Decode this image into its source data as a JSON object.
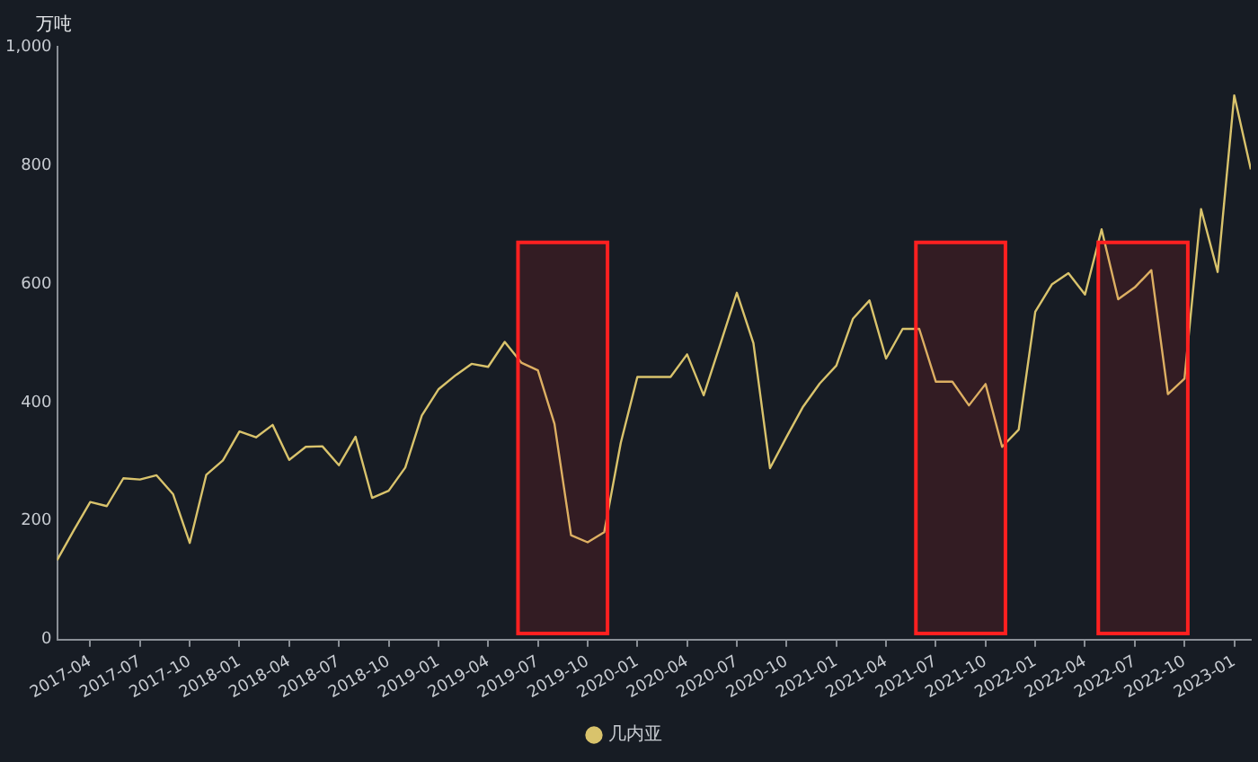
{
  "chart_data": {
    "type": "line",
    "ylabel": "万吨",
    "x": [
      "2017-02",
      "2017-03",
      "2017-04",
      "2017-05",
      "2017-06",
      "2017-07",
      "2017-08",
      "2017-09",
      "2017-10",
      "2017-11",
      "2017-12",
      "2018-01",
      "2018-02",
      "2018-03",
      "2018-04",
      "2018-05",
      "2018-06",
      "2018-07",
      "2018-08",
      "2018-09",
      "2018-10",
      "2018-11",
      "2018-12",
      "2019-01",
      "2019-02",
      "2019-03",
      "2019-04",
      "2019-05",
      "2019-06",
      "2019-07",
      "2019-08",
      "2019-09",
      "2019-10",
      "2019-11",
      "2019-12",
      "2020-01",
      "2020-02",
      "2020-03",
      "2020-04",
      "2020-05",
      "2020-06",
      "2020-07",
      "2020-08",
      "2020-09",
      "2020-10",
      "2020-11",
      "2020-12",
      "2021-01",
      "2021-02",
      "2021-03",
      "2021-04",
      "2021-05",
      "2021-06",
      "2021-07",
      "2021-08",
      "2021-09",
      "2021-10",
      "2021-11",
      "2021-12",
      "2022-01",
      "2022-02",
      "2022-03",
      "2022-04",
      "2022-05",
      "2022-06",
      "2022-07",
      "2022-08",
      "2022-09",
      "2022-10",
      "2022-11",
      "2022-12",
      "2023-01",
      "2023-02"
    ],
    "series": [
      {
        "name": "几内亚",
        "color": "#d9c36c",
        "values": [
          134,
          184,
          232,
          225,
          272,
          270,
          277,
          245,
          163,
          278,
          302,
          351,
          341,
          362,
          303,
          325,
          326,
          294,
          342,
          239,
          251,
          290,
          378,
          422,
          445,
          465,
          460,
          502,
          467,
          454,
          364,
          176,
          164,
          181,
          332,
          443,
          443,
          443,
          481,
          412,
          498,
          585,
          500,
          289,
          342,
          393,
          432,
          462,
          541,
          572,
          474,
          524,
          524,
          435,
          435,
          395,
          431,
          325,
          354,
          553,
          599,
          618,
          582,
          692,
          574,
          594,
          623,
          414,
          440,
          726,
          620,
          918,
          793
        ]
      }
    ],
    "xlim": [
      "2017-02",
      "2023-02"
    ],
    "xticks": [
      "2017-04",
      "2017-07",
      "2017-10",
      "2018-01",
      "2018-04",
      "2018-07",
      "2018-10",
      "2019-01",
      "2019-04",
      "2019-07",
      "2019-10",
      "2020-01",
      "2020-04",
      "2020-07",
      "2020-10",
      "2021-01",
      "2021-04",
      "2021-07",
      "2021-10",
      "2022-01",
      "2022-04",
      "2022-07",
      "2022-10",
      "2023-01"
    ],
    "ylim": [
      0,
      1000
    ],
    "yticks": [
      0,
      200,
      400,
      600,
      800,
      {
        "value": 1000,
        "label": "1,000"
      }
    ],
    "bands": [
      {
        "axis": "x",
        "from": "2019-06",
        "to": "2019-11",
        "color": "#ff2020"
      },
      {
        "axis": "x",
        "from": "2021-06",
        "to": "2021-11",
        "color": "#ff2020"
      },
      {
        "axis": "x",
        "from": "2022-05",
        "to": "2022-10",
        "color": "#ff2020"
      }
    ],
    "grid": false,
    "legend": "bottom",
    "marker": "none",
    "line_style": "solid"
  }
}
